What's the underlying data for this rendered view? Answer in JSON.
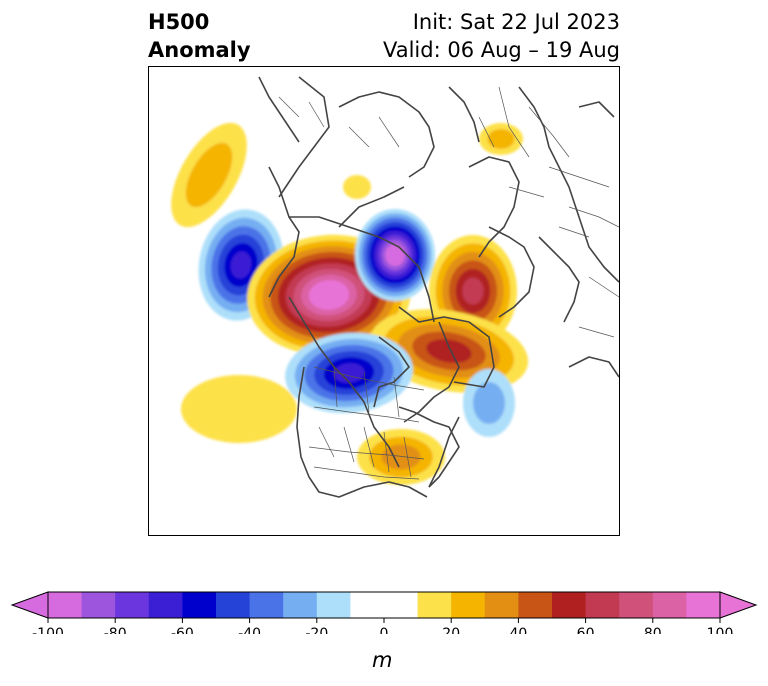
{
  "title": {
    "left_line1": "H500",
    "left_line2": "Anomaly",
    "right_line1": "Init: Sat 22 Jul 2023",
    "right_line2": "Valid: 06 Aug – 19 Aug"
  },
  "colorbar": {
    "unit": "m",
    "ticks": [
      "-100",
      "-80",
      "-60",
      "-40",
      "-20",
      "0",
      "20",
      "40",
      "60",
      "80",
      "100"
    ],
    "colors": [
      "#d66be0",
      "#9d55dd",
      "#6b36dd",
      "#3a1fd4",
      "#0000cc",
      "#2643d8",
      "#4b73e8",
      "#76aef2",
      "#addffa",
      "#ffffff",
      "#ffffff",
      "#fde14a",
      "#f4b400",
      "#e28f13",
      "#c85416",
      "#b02020",
      "#c23a52",
      "#d0517a",
      "#dc62a6",
      "#e873d7"
    ],
    "under_color": "#d66be0",
    "over_color": "#e873d7"
  },
  "map": {
    "projection": "north polar stereographic",
    "field": "500 hPa geopotential height anomaly",
    "features": [
      {
        "name": "positive-anomaly-east-pacific",
        "sign": "positive",
        "max_value": 20
      },
      {
        "name": "negative-anomaly-bering",
        "sign": "negative",
        "min_value": -60
      },
      {
        "name": "positive-anomaly-arctic-canada",
        "sign": "positive",
        "max_value": 100
      },
      {
        "name": "negative-anomaly-kara-sea",
        "sign": "negative",
        "min_value": -100
      },
      {
        "name": "positive-anomaly-scandinavia",
        "sign": "positive",
        "max_value": 60
      },
      {
        "name": "positive-anomaly-north-atlantic",
        "sign": "positive",
        "max_value": 50
      },
      {
        "name": "negative-anomaly-western-canada",
        "sign": "negative",
        "min_value": -60
      },
      {
        "name": "positive-anomaly-eastern-us",
        "sign": "positive",
        "max_value": 30
      },
      {
        "name": "negative-anomaly-western-atlantic",
        "sign": "negative",
        "min_value": -20
      },
      {
        "name": "positive-anomaly-siberia",
        "sign": "positive",
        "max_value": 20
      }
    ]
  }
}
